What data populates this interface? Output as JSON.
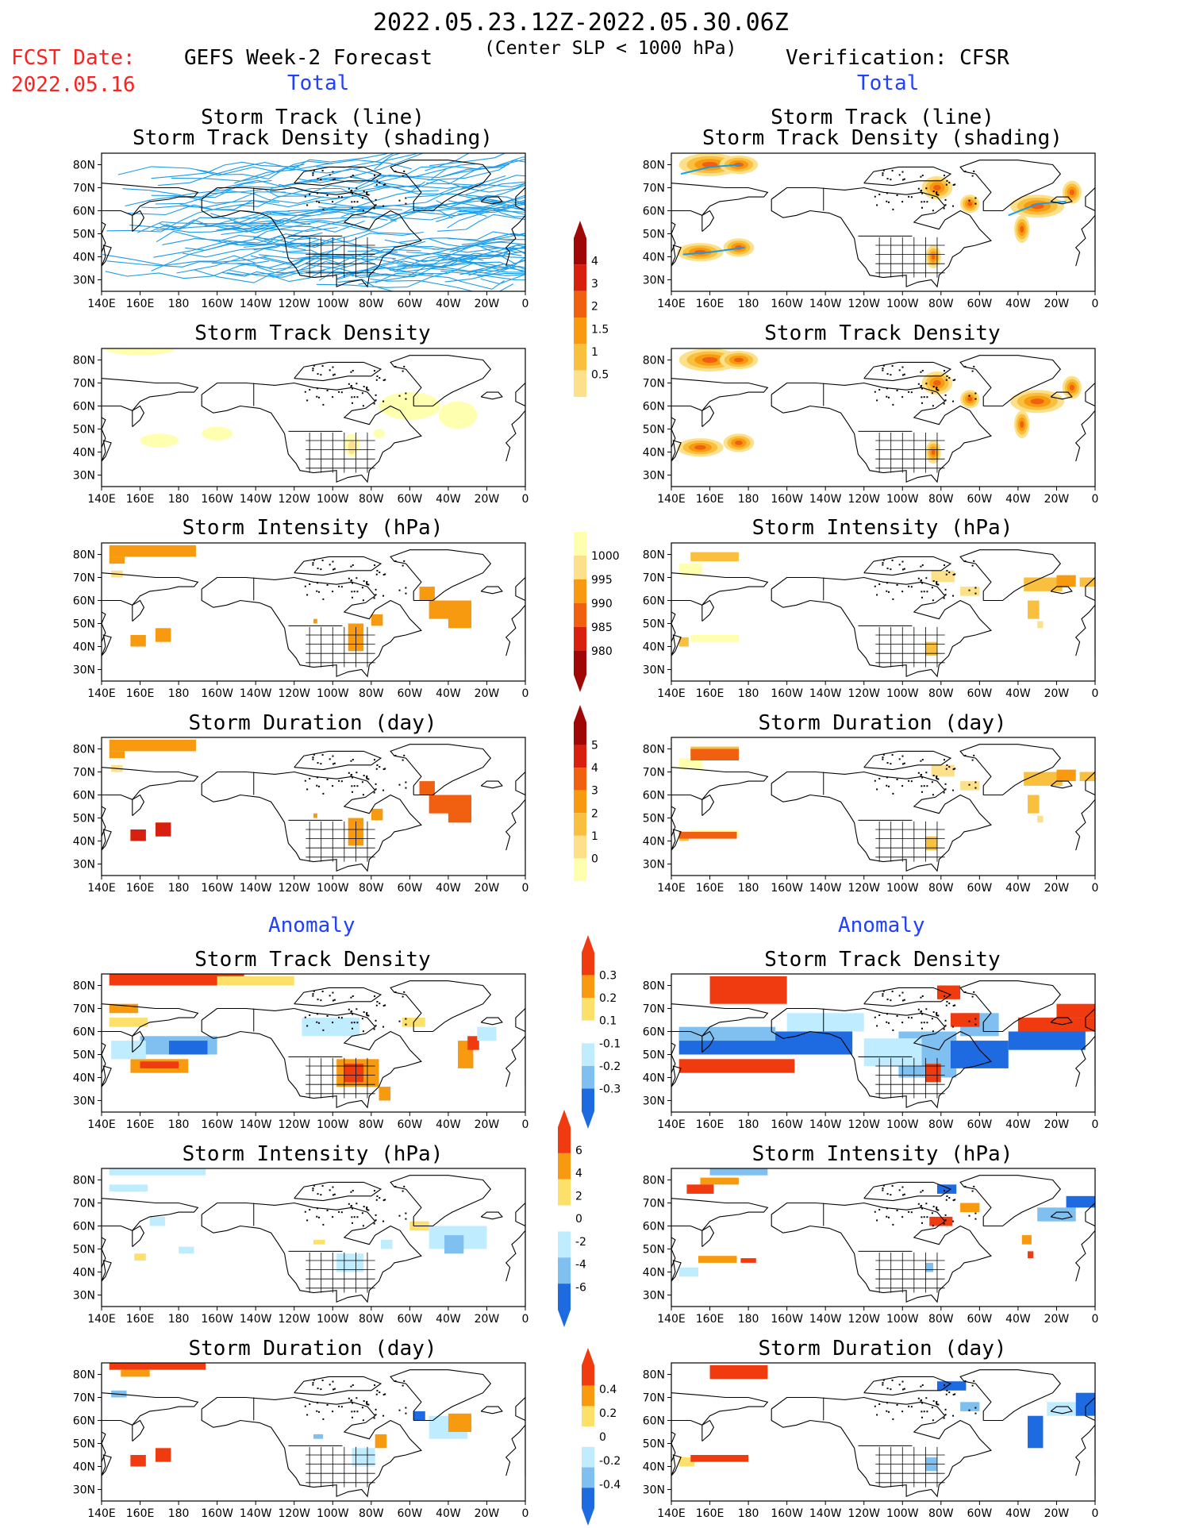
{
  "header": {
    "date_range": "2022.05.23.12Z-2022.05.30.06Z",
    "criterion": "(Center SLP < 1000 hPa)",
    "fcst_label": "FCST Date:",
    "fcst_date": "2022.05.16",
    "left_title": "GEFS Week-2 Forecast",
    "right_title": "Verification: CFSR",
    "total_label": "Total",
    "anomaly_label": "Anomaly"
  },
  "panel_titles": {
    "track": [
      "Storm Track (line)",
      "Storm Track Density (shading)"
    ],
    "density": "Storm Track Density",
    "intensity": "Storm Intensity (hPa)",
    "duration": "Storm Duration (day)"
  },
  "axes": {
    "lon_ticks": [
      "140E",
      "160E",
      "180",
      "160W",
      "140W",
      "120W",
      "100W",
      "80W",
      "60W",
      "40W",
      "20W",
      "0"
    ],
    "lat_ticks": [
      "80N",
      "70N",
      "60N",
      "50N",
      "40N",
      "30N"
    ]
  },
  "colorbars": {
    "track_density_total": [
      "0.5",
      "1",
      "1.5",
      "2",
      "3",
      "4"
    ],
    "intensity_total": [
      "1000",
      "995",
      "990",
      "985",
      "980"
    ],
    "duration_total": [
      "0",
      "1",
      "2",
      "3",
      "4",
      "5"
    ],
    "density_anomaly": [
      "0.3",
      "0.2",
      "0.1",
      "-0.1",
      "-0.2",
      "-0.3"
    ],
    "intensity_anomaly": [
      "6",
      "4",
      "2",
      "0",
      "-2",
      "-4",
      "-6"
    ],
    "duration_anomaly": [
      "0.4",
      "0.2",
      "0",
      "-0.2",
      "-0.4"
    ]
  },
  "colors": {
    "total_scale": [
      "#ffffb0",
      "#fce08a",
      "#f9c040",
      "#f89a10",
      "#f06010",
      "#d82010",
      "#a00808"
    ],
    "anomaly_pos": [
      "#fce06a",
      "#f89a10",
      "#f03a10"
    ],
    "anomaly_neg": [
      "#c0ecff",
      "#80c0f0",
      "#1e6ae0"
    ],
    "track_lines": "#1c9ce8",
    "header_red": "#ff2020",
    "header_blue": "#2040ff"
  }
}
